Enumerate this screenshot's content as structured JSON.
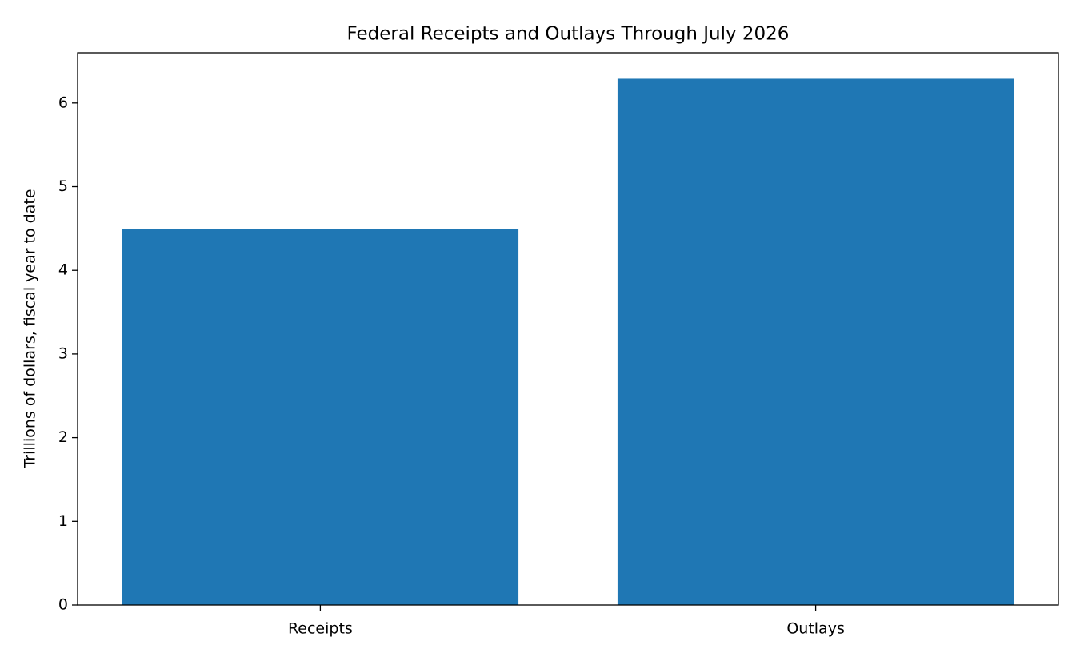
{
  "chart_data": {
    "type": "bar",
    "title": "Federal Receipts and Outlays Through July 2026",
    "y_label": "Trillions of dollars, fiscal year to date",
    "categories": [
      "Receipts",
      "Outlays"
    ],
    "values": [
      4.49,
      6.29
    ],
    "color": "#1f77b4",
    "ylim": [
      0,
      6.6
    ],
    "yticks": [
      0,
      1,
      2,
      3,
      4,
      5,
      6
    ],
    "grid": false
  }
}
